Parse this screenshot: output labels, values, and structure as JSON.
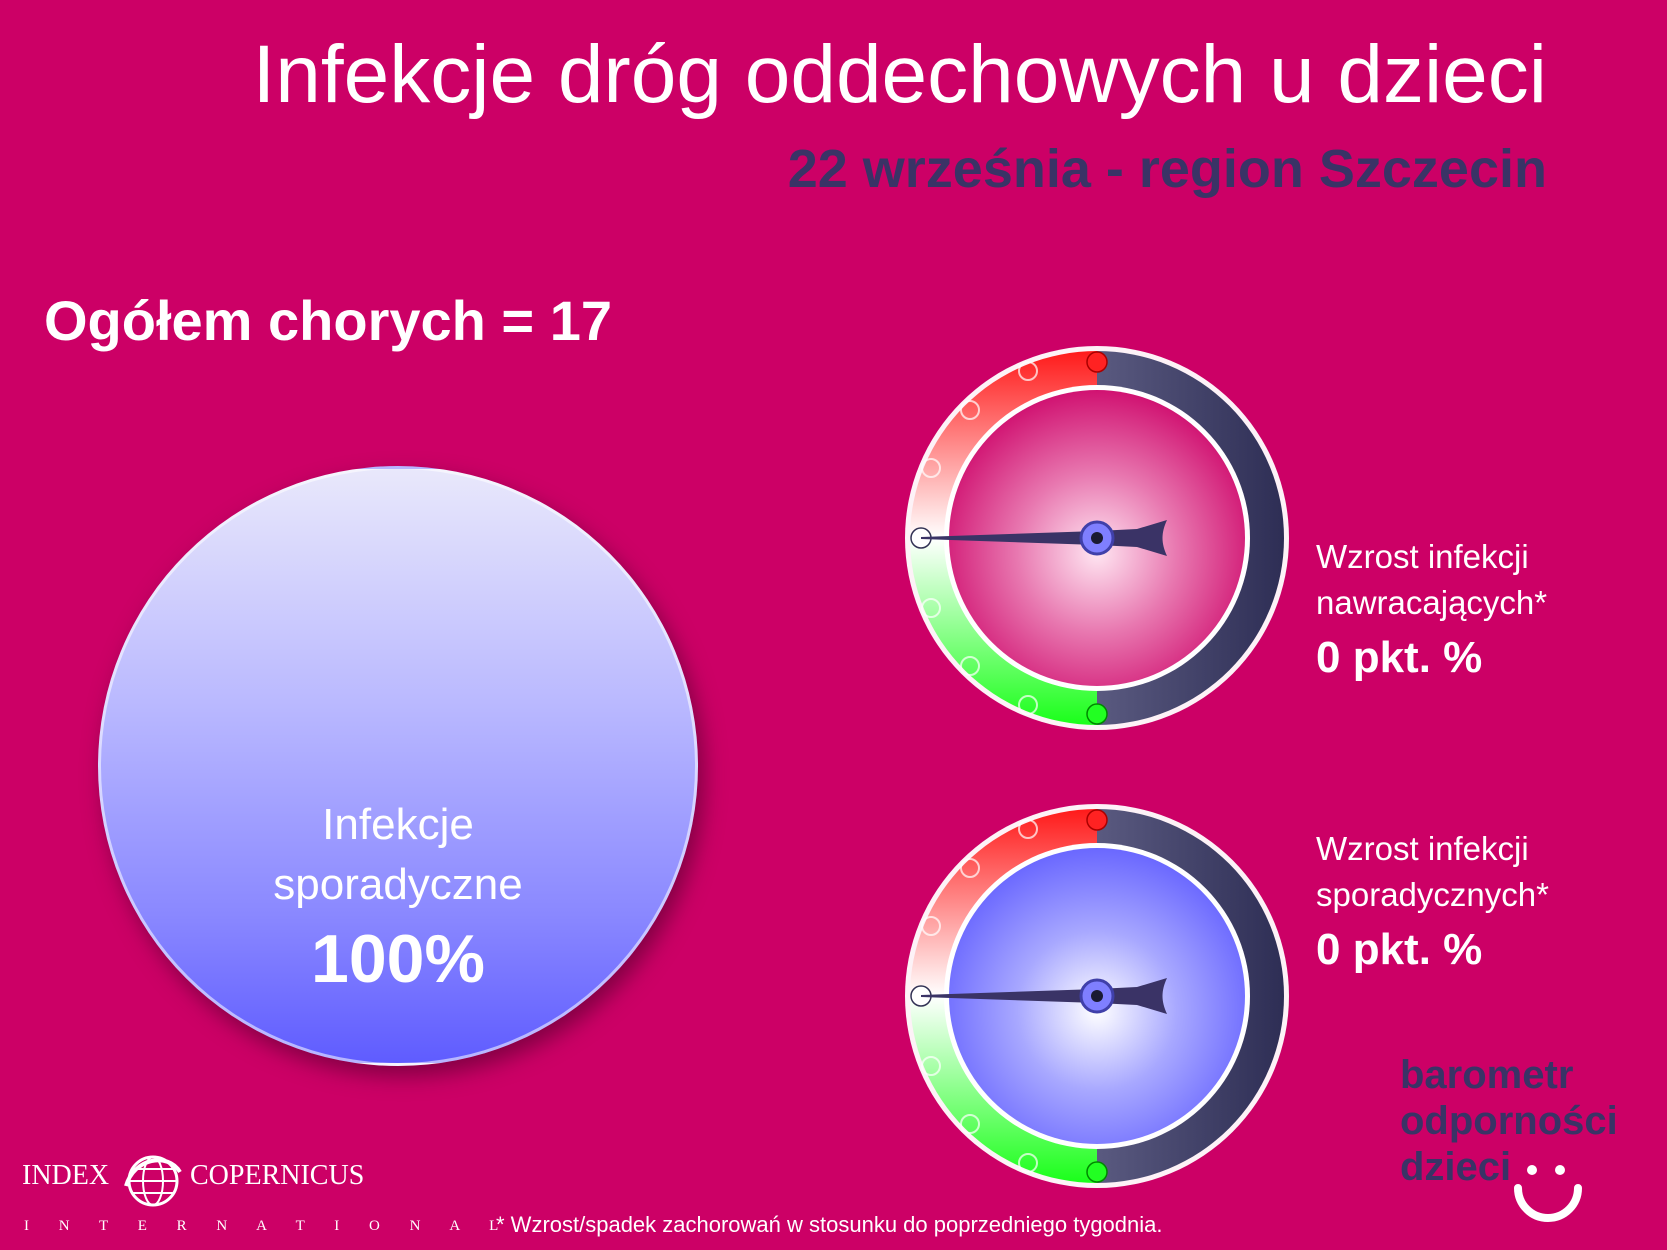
{
  "header": {
    "title": "Infekcje dróg oddechowych u dzieci",
    "subtitle": "22 września - region Szczecin"
  },
  "summary": {
    "total_label": "Ogółem chorych = 17"
  },
  "pie": {
    "label_line1": "Infekcje",
    "label_line2": "sporadyczne",
    "value": "100%",
    "share": 1.0
  },
  "gauges": [
    {
      "line1": "Wzrost infekcji",
      "line2": "nawracających*",
      "value": "0 pkt. %",
      "reading": 0,
      "face_color": "#cc0066"
    },
    {
      "line1": "Wzrost infekcji",
      "line2": "sporadycznych*",
      "value": "0 pkt. %",
      "reading": 0,
      "face_color": "#6a6aff"
    }
  ],
  "brand": {
    "line1": "barometr",
    "line2": "odporności",
    "line3": "dzieci"
  },
  "logo": {
    "left_word": "INDEX",
    "right_word": "COPERNICUS",
    "tagline": "I N T E R N A T I O N A L"
  },
  "footnote": "* Wzrost/spadek zachorowań w stosunku do poprzedniego tygodnia.",
  "colors": {
    "background": "#cc0066",
    "dark_text": "#3a3366",
    "gauge_red": "#ff1a1a",
    "gauge_green": "#22ff33",
    "gauge_dark": "#3a3a66"
  }
}
